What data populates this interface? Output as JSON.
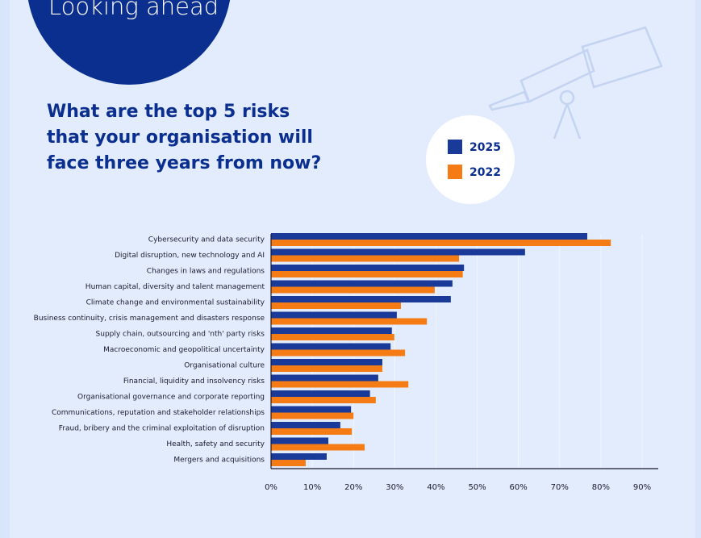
{
  "page": {
    "heading": "Looking ahead"
  },
  "chart_data": {
    "type": "hbar",
    "title": [
      "What are the top 5 risks",
      "that your organisation will",
      "face three years from now?"
    ],
    "categories": [
      "Cybersecurity and data security",
      "Digital disruption, new technology and AI",
      "Changes in laws and regulations",
      "Human capital, diversity and talent management",
      "Climate change and environmental sustainability",
      "Business continuity, crisis management and disasters response",
      "Supply chain, outsourcing and 'nth' party risks",
      "Macroeconomic and geopolitical uncertainty",
      "Organisational culture",
      "Financial, liquidity and insolvency risks",
      "Organisational governance and corporate reporting",
      "Communications, reputation and stakeholder relationships",
      "Fraud, bribery and the criminal exploitation of disruption",
      "Health, safety and security",
      "Mergers and acquisitions"
    ],
    "series": [
      {
        "name": "2025",
        "color": "#1a3a99",
        "values": [
          76.7,
          61.6,
          46.8,
          44,
          43.6,
          30.5,
          29.3,
          29,
          27,
          26,
          24,
          19.4,
          16.8,
          13.9,
          13.5
        ]
      },
      {
        "name": "2022",
        "color": "#f57c14",
        "values": [
          82.4,
          45.6,
          46.5,
          39.7,
          31.5,
          37.8,
          29.9,
          32.5,
          27,
          33.3,
          25.4,
          20,
          19.6,
          22.7,
          8.4
        ]
      }
    ],
    "xlim": [
      0,
      90
    ],
    "xticks": [
      {
        "value": 0,
        "label": "0%"
      },
      {
        "value": 10,
        "label": "10%"
      },
      {
        "value": 20,
        "label": "20%"
      },
      {
        "value": 30,
        "label": "30%"
      },
      {
        "value": 40,
        "label": "40%"
      },
      {
        "value": 50,
        "label": "50%"
      },
      {
        "value": 60,
        "label": "60%"
      },
      {
        "value": 70,
        "label": "70%"
      },
      {
        "value": 80,
        "label": "80%"
      },
      {
        "value": 90,
        "label": "90%"
      }
    ],
    "grid": true
  }
}
